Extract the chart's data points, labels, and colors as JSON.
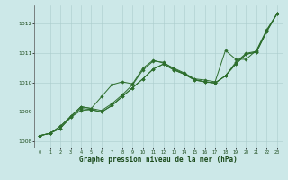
{
  "xlabel": "Graphe pression niveau de la mer (hPa)",
  "background_color": "#cce8e8",
  "grid_color": "#aacccc",
  "line_color": "#2d6e2d",
  "xlim": [
    -0.5,
    23.5
  ],
  "ylim": [
    1007.8,
    1012.6
  ],
  "yticks": [
    1008,
    1009,
    1010,
    1011,
    1012
  ],
  "xticks": [
    0,
    1,
    2,
    3,
    4,
    5,
    6,
    7,
    8,
    9,
    10,
    11,
    12,
    13,
    14,
    15,
    16,
    17,
    18,
    19,
    20,
    21,
    22,
    23
  ],
  "s1": [
    1008.2,
    1008.28,
    1008.45,
    1008.82,
    1009.12,
    1009.08,
    1009.0,
    1009.22,
    1009.52,
    1009.82,
    1010.12,
    1010.45,
    1010.62,
    1010.42,
    1010.28,
    1010.08,
    1010.02,
    1009.98,
    1010.22,
    1010.62,
    1010.95,
    1011.02,
    1011.72,
    1012.32
  ],
  "s2": [
    1008.2,
    1008.28,
    1008.52,
    1008.85,
    1009.18,
    1009.12,
    1009.05,
    1009.28,
    1009.58,
    1009.92,
    1010.42,
    1010.72,
    1010.68,
    1010.45,
    1010.3,
    1010.1,
    1010.02,
    1009.98,
    1010.22,
    1010.68,
    1010.98,
    1011.05,
    1011.75,
    1012.32
  ],
  "s3": [
    1008.2,
    1008.28,
    1008.52,
    1008.85,
    1009.18,
    1009.12,
    1009.52,
    1009.92,
    1010.02,
    1009.95,
    1010.48,
    1010.75,
    1010.65,
    1010.48,
    1010.32,
    1010.12,
    1010.08,
    1010.02,
    1011.08,
    1010.78,
    1010.78,
    1011.08,
    1011.78,
    1012.32
  ],
  "s4": [
    1008.2,
    1008.28,
    1008.45,
    1008.82,
    1009.05,
    1009.08,
    1009.0,
    1009.22,
    1009.52,
    1009.82,
    1010.12,
    1010.45,
    1010.62,
    1010.42,
    1010.28,
    1010.08,
    1010.02,
    1009.98,
    1010.22,
    1010.62,
    1010.95,
    1011.02,
    1011.72,
    1012.32
  ]
}
